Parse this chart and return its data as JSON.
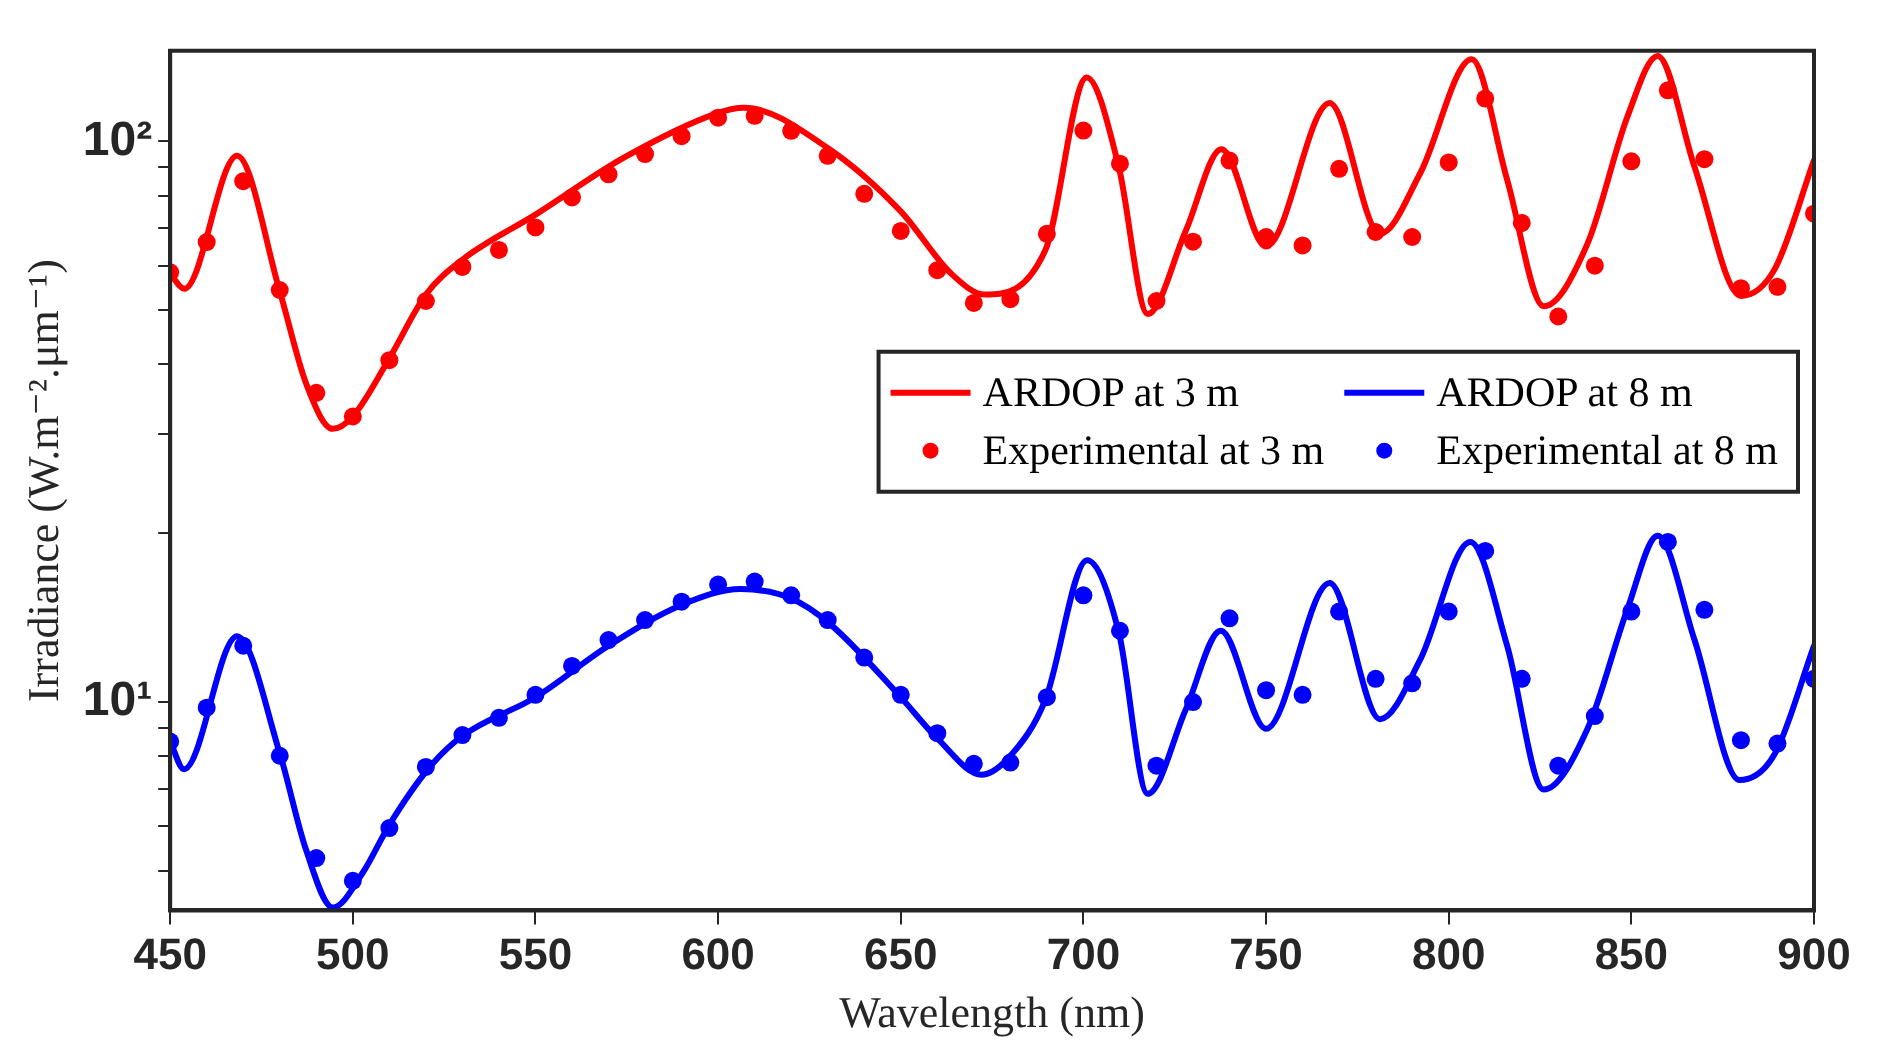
{
  "chart_data": {
    "type": "line",
    "xlabel": "Wavelength (nm)",
    "ylabel": "Irradiance (W.m⁻².μm⁻¹)",
    "log": "y",
    "legend": "right",
    "xlim": [
      450,
      900
    ],
    "xticks": [
      450,
      500,
      550,
      600,
      650,
      700,
      750,
      800,
      850,
      900
    ],
    "ylim": [
      4.25,
      145
    ],
    "yticks": [
      {
        "value": 5,
        "label": null
      },
      {
        "value": 6,
        "label": null
      },
      {
        "value": 7,
        "label": null
      },
      {
        "value": 8,
        "label": null
      },
      {
        "value": 9,
        "label": null
      },
      {
        "value": 10,
        "label": "10¹"
      },
      {
        "value": 20,
        "label": null
      },
      {
        "value": 30,
        "label": null
      },
      {
        "value": 40,
        "label": null
      },
      {
        "value": 50,
        "label": null
      },
      {
        "value": 60,
        "label": null
      },
      {
        "value": 70,
        "label": null
      },
      {
        "value": 80,
        "label": null
      },
      {
        "value": 90,
        "label": null
      },
      {
        "value": 100,
        "label": "10²"
      }
    ],
    "series": [
      {
        "name": "ARDOP at 3 m",
        "type": "line",
        "line_style": "solid",
        "marker": "none",
        "color": "#ff0000",
        "x": [
          450,
          453.9,
          468.3,
          480,
          487.2,
          494.5,
          500,
          510,
          520,
          530,
          550,
          574.2,
          600,
          607,
          630,
          650,
          663.9,
          673,
          689.6,
          700.9,
          709.7,
          717.6,
          728,
          737.8,
          750,
          767.4,
          781.2,
          792.2,
          806.3,
          816,
          826,
          838,
          849,
          857.2,
          867.3,
          880,
          889.2,
          900
        ],
        "values": [
          58,
          54.6,
          94.2,
          54,
          37,
          30.7,
          32.3,
          41,
          53.3,
          61.5,
          74,
          93.5,
          112.4,
          114.8,
          97.3,
          75,
          58,
          53.3,
          64,
          130,
          89.9,
          49.2,
          69.2,
          96.8,
          64.9,
          117,
          68.4,
          87.7,
          140,
          85.4,
          50.8,
          65.7,
          111,
          142,
          90,
          53,
          59.1,
          92.5
        ]
      },
      {
        "name": "Experimental at 3 m",
        "type": "scatter",
        "marker": "circle",
        "color": "#ff0000",
        "x": [
          450,
          460,
          470,
          480,
          490,
          500,
          510,
          520,
          530,
          540,
          550,
          560,
          570,
          580,
          590,
          600,
          610,
          620,
          630,
          640,
          650,
          660,
          670,
          680,
          690,
          700,
          710,
          720,
          730,
          740,
          750,
          760,
          770,
          780,
          790,
          800,
          810,
          820,
          830,
          840,
          850,
          860,
          870,
          880,
          890,
          900
        ],
        "values": [
          58.4,
          66.1,
          84.9,
          54.3,
          35.6,
          32.3,
          40.7,
          51.9,
          59.7,
          64,
          70.2,
          79.4,
          87.3,
          94.9,
          102.1,
          110.2,
          111,
          104.4,
          94.2,
          80.6,
          69.2,
          58.9,
          51.5,
          52.3,
          68.4,
          104.5,
          91.2,
          51.9,
          66.2,
          92.4,
          67.5,
          65.2,
          89.3,
          68.9,
          67.5,
          91.7,
          119.2,
          71.5,
          48.7,
          60,
          92.1,
          123.3,
          92.9,
          54.7,
          55,
          74.3
        ]
      },
      {
        "name": "ARDOP at 8 m",
        "type": "line",
        "line_style": "solid",
        "marker": "none",
        "color": "#0000ff",
        "x": [
          450,
          453.8,
          468.3,
          480,
          487.2,
          494.5,
          502.8,
          510,
          521,
          530,
          550,
          570,
          590,
          606.2,
          620,
          630.5,
          650,
          660,
          672.2,
          680.4,
          689.6,
          701,
          709.7,
          717.6,
          728,
          737.6,
          750,
          767.4,
          781.2,
          792.2,
          805.9,
          816,
          826,
          838,
          849,
          857.2,
          867.3,
          879.6,
          889.2,
          900
        ],
        "values": [
          8.5,
          7.59,
          13.1,
          8.1,
          5.45,
          4.3,
          4.97,
          6.04,
          7.65,
          8.7,
          10.2,
          12.6,
          14.9,
          15.9,
          15.3,
          13.8,
          10.2,
          8.61,
          7.42,
          8.07,
          10.1,
          17.9,
          13.3,
          6.86,
          9.69,
          13.4,
          8.96,
          16.3,
          9.32,
          11.9,
          19.3,
          12.6,
          6.98,
          8.96,
          14.7,
          19.8,
          12.9,
          7.26,
          8.07,
          12.6
        ]
      },
      {
        "name": "Experimental at 8 m",
        "type": "scatter",
        "marker": "circle",
        "color": "#0000ff",
        "x": [
          450,
          460,
          470,
          480,
          490,
          500,
          510,
          520,
          530,
          540,
          550,
          560,
          570,
          580,
          590,
          600,
          610,
          620,
          630,
          640,
          650,
          660,
          670,
          680,
          690,
          700,
          710,
          720,
          730,
          740,
          750,
          760,
          770,
          780,
          790,
          800,
          810,
          820,
          830,
          840,
          850,
          860,
          870,
          880,
          890,
          900
        ],
        "values": [
          8.5,
          9.77,
          12.6,
          8.02,
          5.27,
          4.8,
          5.96,
          7.66,
          8.73,
          9.37,
          10.3,
          11.6,
          12.9,
          14,
          15.1,
          16.2,
          16.4,
          15.5,
          14,
          12,
          10.3,
          8.8,
          7.76,
          7.8,
          10.2,
          15.5,
          13.4,
          7.7,
          10,
          14.1,
          10.5,
          10.3,
          14.5,
          11,
          10.8,
          14.5,
          18.6,
          11,
          7.7,
          9.44,
          14.5,
          19.3,
          14.6,
          8.55,
          8.43,
          11
        ]
      }
    ]
  }
}
